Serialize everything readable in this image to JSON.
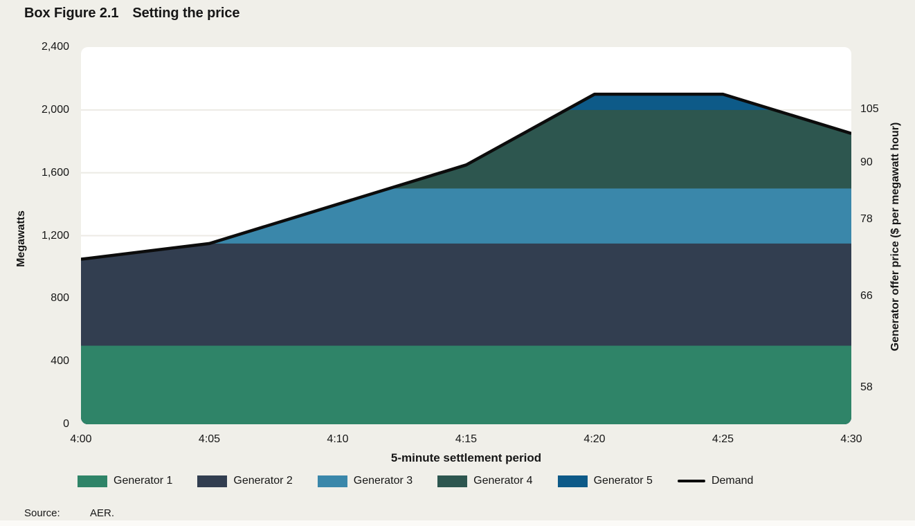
{
  "figure": {
    "title_prefix": "Box Figure 2.1",
    "title": "Setting the price",
    "source_label": "Source:",
    "source_value": "AER."
  },
  "colors": {
    "background": "#f0efe9",
    "plot_background": "#ffffff",
    "grid": "#eceae4",
    "text": "#161616",
    "demand_line": "#0c0c0c"
  },
  "chart_data": {
    "type": "area",
    "stacked": true,
    "title": "Setting the price",
    "xlabel": "5-minute settlement period",
    "ylabel_left": "Megawatts",
    "ylabel_right": "Generator offer price ($ per megawatt hour)",
    "x_categories": [
      "4:00",
      "4:05",
      "4:10",
      "4:15",
      "4:20",
      "4:25",
      "4:30"
    ],
    "ylim": [
      0,
      2400
    ],
    "y_left_ticks": [
      {
        "label": "0",
        "mw": 0
      },
      {
        "label": "400",
        "mw": 400
      },
      {
        "label": "800",
        "mw": 800
      },
      {
        "label": "1,200",
        "mw": 1200
      },
      {
        "label": "1,600",
        "mw": 1600
      },
      {
        "label": "2,000",
        "mw": 2000
      },
      {
        "label": "2,400",
        "mw": 2400
      }
    ],
    "grid_lines_mw": [
      400,
      800,
      1200,
      1600,
      2000
    ],
    "series": [
      {
        "name": "Generator 1",
        "offer_price": 58,
        "band_from_mw": 0,
        "band_to_mw": 500,
        "color": "#2f8468"
      },
      {
        "name": "Generator 2",
        "offer_price": 66,
        "band_from_mw": 500,
        "band_to_mw": 1150,
        "color": "#323e50"
      },
      {
        "name": "Generator 3",
        "offer_price": 78,
        "band_from_mw": 1150,
        "band_to_mw": 1500,
        "color": "#3a87aa"
      },
      {
        "name": "Generator 4",
        "offer_price": 90,
        "band_from_mw": 1500,
        "band_to_mw": 2000,
        "color": "#2d564f"
      },
      {
        "name": "Generator 5",
        "offer_price": 105,
        "band_from_mw": 2000,
        "band_to_mw": 2100,
        "color": "#0d5a88"
      }
    ],
    "demand": {
      "name": "Demand",
      "color": "#0c0c0c",
      "values_mw": [
        1050,
        1150,
        1400,
        1650,
        2100,
        2100,
        1850
      ]
    },
    "y_right_ticks": [
      {
        "label": "105",
        "mw": 2004
      },
      {
        "label": "90",
        "mw": 1665
      },
      {
        "label": "78",
        "mw": 1304
      },
      {
        "label": "66",
        "mw": 815
      },
      {
        "label": "58",
        "mw": 233
      }
    ],
    "legend_position": "bottom"
  }
}
